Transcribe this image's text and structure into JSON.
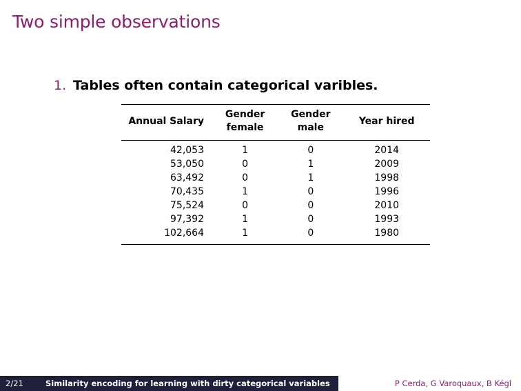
{
  "slide": {
    "title": "Two simple observations",
    "item_number": "1.",
    "item_text": "Tables often contain categorical varibles."
  },
  "table": {
    "headers": [
      [
        "Annual Salary"
      ],
      [
        "Gender",
        "female"
      ],
      [
        "Gender",
        "male"
      ],
      [
        "Year hired"
      ]
    ],
    "rows": [
      [
        "42,053",
        "1",
        "0",
        "2014"
      ],
      [
        "53,050",
        "0",
        "1",
        "2009"
      ],
      [
        "63,492",
        "0",
        "1",
        "1998"
      ],
      [
        "70,435",
        "1",
        "0",
        "1996"
      ],
      [
        "75,524",
        "0",
        "0",
        "2010"
      ],
      [
        "97,392",
        "1",
        "0",
        "1993"
      ],
      [
        "102,664",
        "1",
        "0",
        "1980"
      ]
    ]
  },
  "footer": {
    "page": "2/21",
    "title": "Similarity encoding for learning with dirty categorical variables",
    "authors": "P Cerda, G Varoquaux, B Kégl"
  },
  "colors": {
    "accent": "#8b1f6e",
    "footer_bg": "#1f1f3a"
  }
}
